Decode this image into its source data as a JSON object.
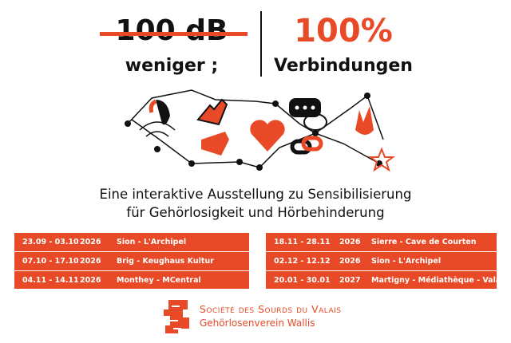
{
  "headline": {
    "left_top": "100 dB",
    "left_bottom": "weniger ;",
    "right_top": "100%",
    "right_bottom": "Verbindungen"
  },
  "subtitle": [
    "Eine interaktive Ausstellung zu Sensibilisierung",
    "für Gehörlosigkeit und Hörbehinderung"
  ],
  "schedule": [
    [
      [
        "23.09 - 03.10",
        "2026",
        "Sion - L'Archipel"
      ],
      [
        "07.10 - 17.10",
        "2026",
        "Brig - Keughaus Kultur"
      ],
      [
        "04.11 - 14.11",
        "2026",
        "Monthey - MCentral"
      ]
    ],
    [
      [
        "18.11 - 28.11",
        "2026",
        "Sierre - Cave de Courten"
      ],
      [
        "02.12 - 12.12",
        "2026",
        "Sion - L'Archipel"
      ],
      [
        "20.01 - 30.01",
        "2027",
        "Martigny - Médiathèque - Valais"
      ]
    ]
  ],
  "footer": {
    "name": "Société des Sourds du Valais",
    "subname": "Gehörlosenverein Wallis"
  }
}
